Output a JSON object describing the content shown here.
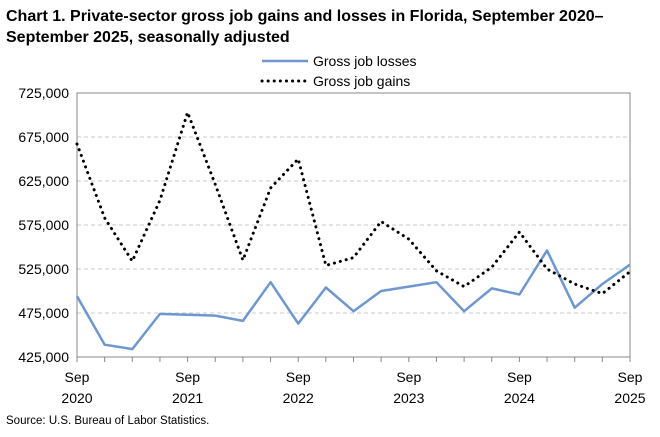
{
  "title": "Chart 1. Private-sector gross job gains and losses in Florida, September 2020–September 2025, seasonally adjusted",
  "source": "Source: U.S. Bureau of Labor Statistics.",
  "colors": {
    "losses": "#6f97cf",
    "gains": "#000000",
    "grid": "#c8c8c8",
    "axis": "#888888"
  },
  "chart_data": {
    "type": "line",
    "title": "Chart 1. Private-sector gross job gains and losses in Florida, September 2020–September 2025, seasonally adjusted",
    "xlabel": "",
    "ylabel": "",
    "ylim": [
      425000,
      725000
    ],
    "yticks": [
      "725,000",
      "675,000",
      "625,000",
      "575,000",
      "525,000",
      "475,000",
      "425,000"
    ],
    "ytick_values": [
      725000,
      675000,
      625000,
      575000,
      525000,
      475000,
      425000
    ],
    "xtick_labels": [
      {
        "month": "Sep",
        "year": "2020",
        "index": 0
      },
      {
        "month": "Sep",
        "year": "2021",
        "index": 4
      },
      {
        "month": "Sep",
        "year": "2022",
        "index": 8
      },
      {
        "month": "Sep",
        "year": "2023",
        "index": 12
      },
      {
        "month": "Sep",
        "year": "2024",
        "index": 16
      },
      {
        "month": "Sep",
        "year": "2025",
        "index": 20
      }
    ],
    "x": [
      "Sep 2020",
      "Dec 2020",
      "Mar 2021",
      "Jun 2021",
      "Sep 2021",
      "Dec 2021",
      "Mar 2022",
      "Jun 2022",
      "Sep 2022",
      "Dec 2022",
      "Mar 2023",
      "Jun 2023",
      "Sep 2023",
      "Dec 2023",
      "Mar 2024",
      "Jun 2024",
      "Sep 2024",
      "Dec 2024",
      "Mar 2025",
      "Jun 2025",
      "Sep 2025"
    ],
    "grid": true,
    "legend": "top",
    "series": [
      {
        "name": "Gross job losses",
        "style": "solid",
        "values": [
          494000,
          439000,
          434000,
          474000,
          473000,
          472000,
          466000,
          510000,
          463000,
          504000,
          477000,
          500000,
          505000,
          510000,
          477000,
          503000,
          496000,
          546000,
          481000,
          508000,
          530000
        ]
      },
      {
        "name": "Gross job gains",
        "style": "dotted",
        "values": [
          667000,
          583000,
          534000,
          603000,
          703000,
          621000,
          535000,
          617000,
          650000,
          529000,
          538000,
          579000,
          559000,
          523000,
          505000,
          527000,
          567000,
          525000,
          508000,
          497000,
          522000
        ]
      }
    ]
  }
}
